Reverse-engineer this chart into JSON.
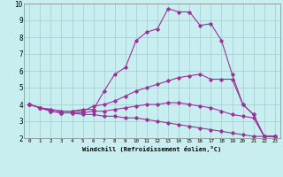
{
  "xlabel": "Windchill (Refroidissement éolien,°C)",
  "background_color": "#c8eef0",
  "grid_color": "#a0ccd0",
  "line_color": "#993399",
  "xlim": [
    -0.5,
    23.5
  ],
  "ylim": [
    2,
    10
  ],
  "xticks": [
    0,
    1,
    2,
    3,
    4,
    5,
    6,
    7,
    8,
    9,
    10,
    11,
    12,
    13,
    14,
    15,
    16,
    17,
    18,
    19,
    20,
    21,
    22,
    23
  ],
  "yticks": [
    2,
    3,
    4,
    5,
    6,
    7,
    8,
    9,
    10
  ],
  "curve1_x": [
    0,
    1,
    2,
    3,
    4,
    5,
    6,
    7,
    8,
    9,
    10,
    11,
    12,
    13,
    14,
    15,
    16,
    17,
    18,
    19,
    20,
    21,
    22,
    23
  ],
  "curve1_y": [
    4.0,
    3.8,
    3.7,
    3.6,
    3.6,
    3.7,
    3.7,
    4.8,
    5.8,
    6.2,
    7.8,
    8.3,
    8.5,
    9.7,
    9.5,
    9.5,
    8.7,
    8.8,
    7.8,
    5.8,
    4.0,
    3.4,
    2.1,
    2.1
  ],
  "curve2_x": [
    0,
    1,
    2,
    3,
    4,
    5,
    6,
    7,
    8,
    9,
    10,
    11,
    12,
    13,
    14,
    15,
    16,
    17,
    18,
    19,
    20,
    21,
    22,
    23
  ],
  "curve2_y": [
    4.0,
    3.8,
    3.7,
    3.6,
    3.6,
    3.6,
    3.9,
    4.0,
    4.2,
    4.5,
    4.8,
    5.0,
    5.2,
    5.4,
    5.6,
    5.7,
    5.8,
    5.5,
    5.5,
    5.5,
    4.0,
    3.4,
    2.1,
    2.1
  ],
  "curve3_x": [
    0,
    1,
    2,
    3,
    4,
    5,
    6,
    7,
    8,
    9,
    10,
    11,
    12,
    13,
    14,
    15,
    16,
    17,
    18,
    19,
    20,
    21,
    22,
    23
  ],
  "curve3_y": [
    4.0,
    3.8,
    3.6,
    3.5,
    3.5,
    3.5,
    3.6,
    3.6,
    3.7,
    3.8,
    3.9,
    4.0,
    4.0,
    4.1,
    4.1,
    4.0,
    3.9,
    3.8,
    3.6,
    3.4,
    3.3,
    3.2,
    2.1,
    2.1
  ],
  "curve4_x": [
    0,
    1,
    2,
    3,
    4,
    5,
    6,
    7,
    8,
    9,
    10,
    11,
    12,
    13,
    14,
    15,
    16,
    17,
    18,
    19,
    20,
    21,
    22,
    23
  ],
  "curve4_y": [
    4.0,
    3.8,
    3.6,
    3.5,
    3.5,
    3.4,
    3.4,
    3.3,
    3.3,
    3.2,
    3.2,
    3.1,
    3.0,
    2.9,
    2.8,
    2.7,
    2.6,
    2.5,
    2.4,
    2.3,
    2.2,
    2.1,
    2.1,
    2.1
  ]
}
